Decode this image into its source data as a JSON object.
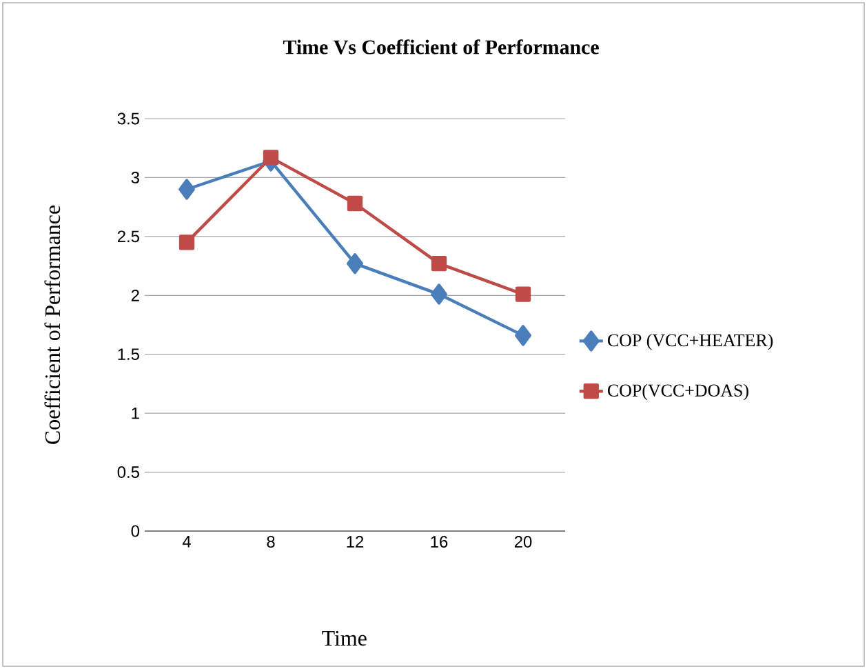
{
  "chart_data": {
    "type": "line",
    "title": "Time Vs Coefficient of Performance",
    "xlabel": "Time",
    "ylabel": "Coefficient of Performance",
    "categories": [
      "4",
      "8",
      "12",
      "16",
      "20"
    ],
    "series": [
      {
        "name": "COP (VCC+HEATER)",
        "color": "#4a7ebb",
        "marker": "diamond",
        "values": [
          2.9,
          3.14,
          2.27,
          2.01,
          1.66
        ]
      },
      {
        "name": "COP(VCC+DOAS)",
        "color": "#be4b48",
        "marker": "square",
        "values": [
          2.45,
          3.17,
          2.78,
          2.27,
          2.01
        ]
      }
    ],
    "ylim": [
      0,
      3.5
    ],
    "yticks": [
      0,
      0.5,
      1,
      1.5,
      2,
      2.5,
      3,
      3.5
    ],
    "grid": "y",
    "legend": "right"
  }
}
